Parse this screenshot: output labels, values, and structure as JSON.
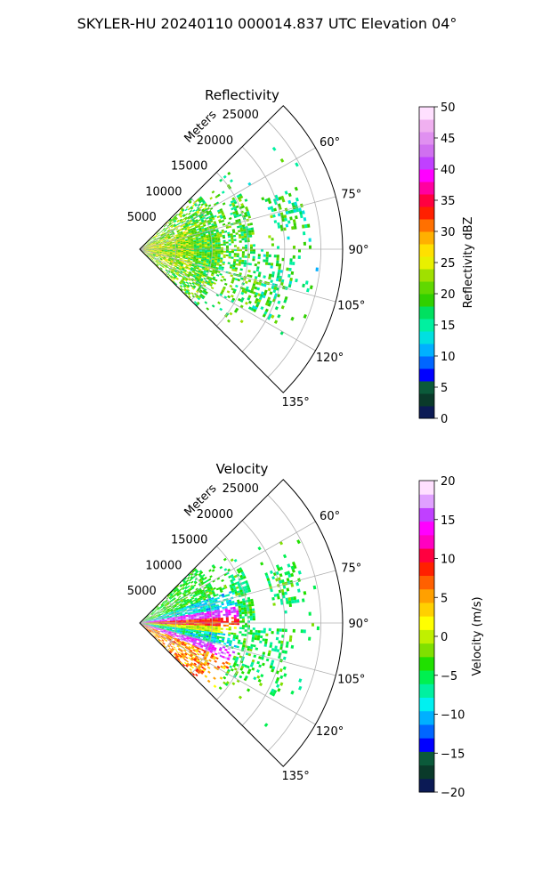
{
  "figure": {
    "title": "SKYLER-HU  20240110  000014.837 UTC Elevation 04°"
  },
  "chart_data": [
    {
      "type": "heatmap",
      "projection": "polar-sector",
      "title": "Reflectivity",
      "range_label": "Meters",
      "range_max": 28000,
      "range_ticks": [
        5000,
        10000,
        15000,
        20000,
        25000
      ],
      "range_tick_labels": [
        "5000",
        "10000",
        "15000",
        "20000",
        "25000"
      ],
      "azimuth_range": [
        45,
        135
      ],
      "azimuth_ticks": [
        60,
        75,
        90,
        105,
        120,
        135
      ],
      "azimuth_tick_labels": [
        "60°",
        "75°",
        "90°",
        "105°",
        "120°",
        "135°"
      ],
      "grid": true,
      "colorbar": {
        "label": "Reflectivity dBZ",
        "min": 0,
        "max": 50,
        "ticks": [
          0,
          5,
          10,
          15,
          20,
          25,
          30,
          35,
          40,
          45,
          50
        ],
        "tick_labels": [
          "0",
          "5",
          "10",
          "15",
          "20",
          "25",
          "30",
          "35",
          "40",
          "45",
          "50"
        ]
      },
      "colormap": "radar-reflectivity"
    },
    {
      "type": "heatmap",
      "projection": "polar-sector",
      "title": "Velocity",
      "range_label": "Meters",
      "range_max": 28000,
      "range_ticks": [
        5000,
        10000,
        15000,
        20000,
        25000
      ],
      "range_tick_labels": [
        "5000",
        "10000",
        "15000",
        "20000",
        "25000"
      ],
      "azimuth_range": [
        45,
        135
      ],
      "azimuth_ticks": [
        60,
        75,
        90,
        105,
        120,
        135
      ],
      "azimuth_tick_labels": [
        "60°",
        "75°",
        "90°",
        "105°",
        "120°",
        "135°"
      ],
      "grid": true,
      "colorbar": {
        "label": "Velocity (m/s)",
        "min": -20,
        "max": 20,
        "ticks": [
          -20,
          -15,
          -10,
          -5,
          0,
          5,
          10,
          15,
          20
        ],
        "tick_labels": [
          "−20",
          "−15",
          "−10",
          "−5",
          "0",
          "5",
          "10",
          "15",
          "20"
        ]
      },
      "colormap": "radar-velocity"
    }
  ],
  "colormaps": {
    "radar-reflectivity": [
      "#0b1a55",
      "#0a3a2a",
      "#0b5a3a",
      "#0000ff",
      "#0066ff",
      "#00b0ff",
      "#00e0e0",
      "#00f0a0",
      "#00e060",
      "#30d000",
      "#60d800",
      "#a0e000",
      "#e8f000",
      "#ffe000",
      "#ffb000",
      "#ff7000",
      "#ff2000",
      "#ff0040",
      "#ff00a0",
      "#ff00ff",
      "#c040ff",
      "#d070f0",
      "#e090f0",
      "#f0b0f0",
      "#ffe0ff"
    ],
    "radar-velocity": [
      "#0b1a55",
      "#0a3a2a",
      "#0b5a3a",
      "#0000ff",
      "#0066ff",
      "#00b0ff",
      "#00f0f0",
      "#00f0a0",
      "#00f050",
      "#20e000",
      "#80e000",
      "#c0f000",
      "#ffff00",
      "#ffd000",
      "#ffa000",
      "#ff6000",
      "#ff2000",
      "#ff0040",
      "#ff00c0",
      "#ff00ff",
      "#c040ff",
      "#e0a0ff",
      "#ffe0ff"
    ]
  }
}
